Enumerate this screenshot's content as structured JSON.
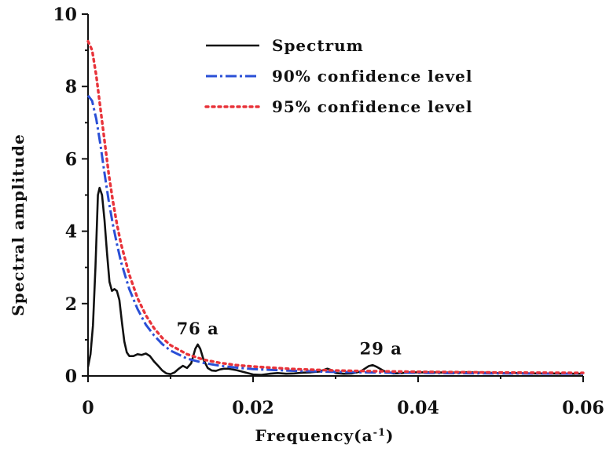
{
  "chart_data": {
    "type": "line",
    "title": "",
    "xlabel": "Frequency(a",
    "xlabel_sup": "-1",
    "xlabel_close": ")",
    "ylabel": "Spectral amplitude",
    "xlim": [
      0,
      0.06
    ],
    "ylim": [
      0,
      10
    ],
    "x_ticks": [
      0,
      0.02,
      0.04,
      0.06
    ],
    "x_tick_labels": [
      "0",
      "0.02",
      "0.04",
      "0.06"
    ],
    "y_ticks": [
      0,
      2,
      4,
      6,
      8,
      10
    ],
    "y_tick_labels": [
      "0",
      "2",
      "4",
      "6",
      "8",
      "10"
    ],
    "grid": false,
    "legend_position": "top-center",
    "series": [
      {
        "name": "Spectrum",
        "color": "#111111",
        "style": "solid",
        "points": [
          [
            0,
            0.25
          ],
          [
            0.0003,
            0.6
          ],
          [
            0.0006,
            1.4
          ],
          [
            0.0009,
            3.0
          ],
          [
            0.0012,
            5.0
          ],
          [
            0.0014,
            5.2
          ],
          [
            0.0017,
            5.0
          ],
          [
            0.002,
            4.3
          ],
          [
            0.0023,
            3.4
          ],
          [
            0.0026,
            2.6
          ],
          [
            0.0029,
            2.35
          ],
          [
            0.0032,
            2.4
          ],
          [
            0.0035,
            2.35
          ],
          [
            0.0038,
            2.1
          ],
          [
            0.0041,
            1.5
          ],
          [
            0.0044,
            0.95
          ],
          [
            0.0047,
            0.65
          ],
          [
            0.005,
            0.55
          ],
          [
            0.0055,
            0.55
          ],
          [
            0.006,
            0.6
          ],
          [
            0.0065,
            0.58
          ],
          [
            0.007,
            0.62
          ],
          [
            0.0075,
            0.55
          ],
          [
            0.008,
            0.4
          ],
          [
            0.0085,
            0.28
          ],
          [
            0.009,
            0.15
          ],
          [
            0.0095,
            0.07
          ],
          [
            0.01,
            0.05
          ],
          [
            0.0105,
            0.1
          ],
          [
            0.011,
            0.2
          ],
          [
            0.0115,
            0.28
          ],
          [
            0.012,
            0.22
          ],
          [
            0.0125,
            0.35
          ],
          [
            0.013,
            0.75
          ],
          [
            0.0133,
            0.87
          ],
          [
            0.0136,
            0.75
          ],
          [
            0.014,
            0.45
          ],
          [
            0.0145,
            0.22
          ],
          [
            0.015,
            0.15
          ],
          [
            0.0155,
            0.14
          ],
          [
            0.016,
            0.18
          ],
          [
            0.0165,
            0.2
          ],
          [
            0.017,
            0.2
          ],
          [
            0.018,
            0.16
          ],
          [
            0.019,
            0.1
          ],
          [
            0.02,
            0.04
          ],
          [
            0.021,
            0.03
          ],
          [
            0.022,
            0.06
          ],
          [
            0.023,
            0.08
          ],
          [
            0.024,
            0.06
          ],
          [
            0.025,
            0.07
          ],
          [
            0.026,
            0.09
          ],
          [
            0.027,
            0.1
          ],
          [
            0.028,
            0.12
          ],
          [
            0.029,
            0.2
          ],
          [
            0.0295,
            0.16
          ],
          [
            0.03,
            0.08
          ],
          [
            0.031,
            0.06
          ],
          [
            0.032,
            0.07
          ],
          [
            0.033,
            0.12
          ],
          [
            0.034,
            0.27
          ],
          [
            0.0345,
            0.3
          ],
          [
            0.035,
            0.25
          ],
          [
            0.036,
            0.12
          ],
          [
            0.037,
            0.07
          ],
          [
            0.038,
            0.08
          ],
          [
            0.039,
            0.1
          ],
          [
            0.04,
            0.1
          ],
          [
            0.042,
            0.1
          ],
          [
            0.044,
            0.09
          ],
          [
            0.046,
            0.1
          ],
          [
            0.048,
            0.09
          ],
          [
            0.05,
            0.08
          ],
          [
            0.052,
            0.08
          ],
          [
            0.054,
            0.07
          ],
          [
            0.056,
            0.07
          ],
          [
            0.058,
            0.06
          ],
          [
            0.06,
            0.06
          ]
        ]
      },
      {
        "name": "90% confidence level",
        "color": "#2a4fd6",
        "style": "dashdot",
        "points": [
          [
            0,
            7.75
          ],
          [
            0.0005,
            7.6
          ],
          [
            0.001,
            7.1
          ],
          [
            0.0015,
            6.4
          ],
          [
            0.002,
            5.6
          ],
          [
            0.0025,
            4.85
          ],
          [
            0.003,
            4.2
          ],
          [
            0.0035,
            3.65
          ],
          [
            0.004,
            3.15
          ],
          [
            0.005,
            2.4
          ],
          [
            0.006,
            1.85
          ],
          [
            0.007,
            1.42
          ],
          [
            0.008,
            1.12
          ],
          [
            0.009,
            0.88
          ],
          [
            0.01,
            0.7
          ],
          [
            0.012,
            0.48
          ],
          [
            0.014,
            0.36
          ],
          [
            0.016,
            0.28
          ],
          [
            0.018,
            0.23
          ],
          [
            0.02,
            0.19
          ],
          [
            0.025,
            0.14
          ],
          [
            0.03,
            0.11
          ],
          [
            0.035,
            0.095
          ],
          [
            0.04,
            0.085
          ],
          [
            0.045,
            0.075
          ],
          [
            0.05,
            0.07
          ],
          [
            0.055,
            0.065
          ],
          [
            0.06,
            0.06
          ]
        ]
      },
      {
        "name": "95% confidence level",
        "color": "#e8333a",
        "style": "dotted",
        "points": [
          [
            0,
            9.25
          ],
          [
            0.0005,
            9.0
          ],
          [
            0.001,
            8.3
          ],
          [
            0.0015,
            7.4
          ],
          [
            0.002,
            6.5
          ],
          [
            0.0025,
            5.6
          ],
          [
            0.003,
            4.85
          ],
          [
            0.0035,
            4.2
          ],
          [
            0.004,
            3.65
          ],
          [
            0.005,
            2.8
          ],
          [
            0.006,
            2.15
          ],
          [
            0.007,
            1.68
          ],
          [
            0.008,
            1.32
          ],
          [
            0.009,
            1.05
          ],
          [
            0.01,
            0.85
          ],
          [
            0.012,
            0.6
          ],
          [
            0.014,
            0.45
          ],
          [
            0.016,
            0.36
          ],
          [
            0.018,
            0.3
          ],
          [
            0.02,
            0.26
          ],
          [
            0.025,
            0.19
          ],
          [
            0.03,
            0.15
          ],
          [
            0.035,
            0.13
          ],
          [
            0.04,
            0.115
          ],
          [
            0.045,
            0.105
          ],
          [
            0.05,
            0.095
          ],
          [
            0.055,
            0.09
          ],
          [
            0.06,
            0.085
          ]
        ]
      }
    ],
    "annotations": [
      {
        "text": "76 a",
        "x": 0.0133,
        "y": 1.15
      },
      {
        "text": "29 a",
        "x": 0.0355,
        "y": 0.6
      }
    ]
  }
}
